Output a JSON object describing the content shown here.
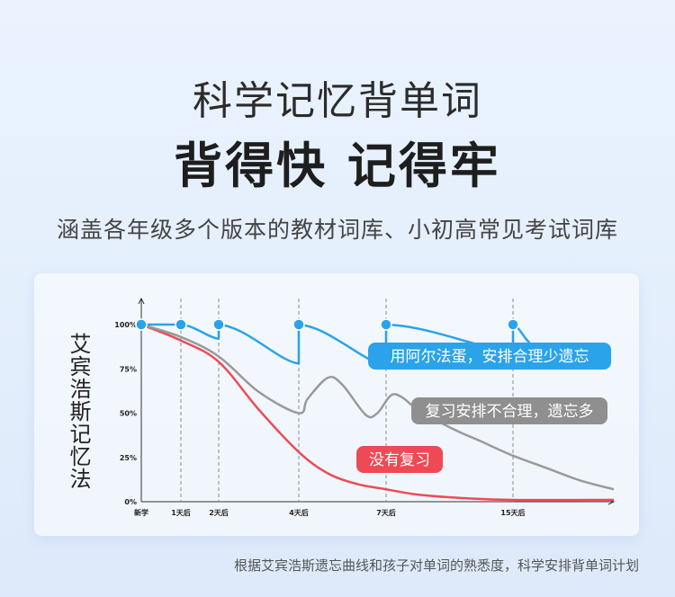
{
  "header": {
    "title1": "科学记忆背单词",
    "title2": "背得快 记得牢",
    "subtitle": "涵盖各年级多个版本的教材词库、小初高常见考试词库"
  },
  "chart_data": {
    "type": "line",
    "ylabel": "艾宾浩斯记忆法",
    "x_ticks": [
      {
        "label": "新学",
        "x": 0
      },
      {
        "label": "1天后",
        "x": 1
      },
      {
        "label": "2天后",
        "x": 2
      },
      {
        "label": "4天后",
        "x": 4
      },
      {
        "label": "7天后",
        "x": 7
      },
      {
        "label": "15天后",
        "x": 15
      }
    ],
    "xlim": [
      0,
      21
    ],
    "y_ticks": [
      "100%",
      "75%",
      "50%",
      "25%",
      "0%"
    ],
    "ylim": [
      0,
      100
    ],
    "series": [
      {
        "name": "用阿尔法蛋，安排合理少遗忘",
        "color": "#2aa3ea",
        "review_points": [
          0,
          1,
          2,
          4,
          7,
          15
        ],
        "points": [
          [
            0,
            100
          ],
          [
            1,
            100
          ],
          [
            2,
            92
          ],
          [
            2,
            100
          ],
          [
            4,
            78
          ],
          [
            4,
            100
          ],
          [
            7,
            77
          ],
          [
            7,
            100
          ],
          [
            15,
            85
          ],
          [
            15,
            100
          ],
          [
            16,
            90
          ]
        ]
      },
      {
        "name": "复习安排不合理，遗忘多",
        "color": "#9a9a9a",
        "points": [
          [
            0,
            100
          ],
          [
            1,
            93
          ],
          [
            2,
            82
          ],
          [
            3,
            62
          ],
          [
            4,
            50
          ],
          [
            4.3,
            58
          ],
          [
            5,
            70
          ],
          [
            5.5,
            66
          ],
          [
            6.3,
            49
          ],
          [
            6.7,
            50
          ],
          [
            7.3,
            60
          ],
          [
            8,
            59
          ],
          [
            9,
            52
          ],
          [
            11,
            42
          ],
          [
            13,
            34
          ],
          [
            15,
            26
          ],
          [
            17,
            19
          ],
          [
            19,
            12
          ],
          [
            21,
            7
          ]
        ]
      },
      {
        "name": "没有复习",
        "color": "#ee4a55",
        "points": [
          [
            0,
            100
          ],
          [
            1,
            91
          ],
          [
            2,
            79
          ],
          [
            3,
            52
          ],
          [
            4,
            28
          ],
          [
            5,
            16
          ],
          [
            6,
            10
          ],
          [
            7,
            7
          ],
          [
            9,
            4
          ],
          [
            12,
            2
          ],
          [
            15,
            1
          ],
          [
            21,
            1
          ]
        ]
      }
    ]
  },
  "footer": "根据艾宾浩斯遗忘曲线和孩子对单词的熟悉度，科学安排背单词计划"
}
